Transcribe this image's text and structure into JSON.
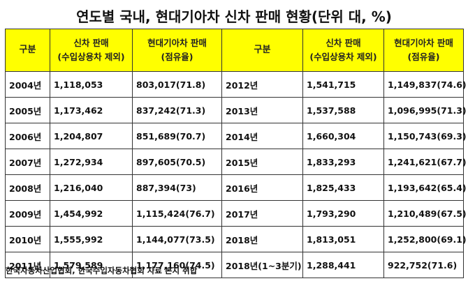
{
  "title": "연도별 국내, 현대기아차 신차 판매 현황(단위 대, %)",
  "table": {
    "headers": {
      "year_label": "구분",
      "sales_line1": "신차 판매",
      "sales_line2": "(수입상용차 제외)",
      "hk_line1": "현대기아차 판매",
      "hk_line2": "(점유율)"
    },
    "rows": [
      {
        "y1": "2004년",
        "s1": "1,118,053",
        "h1": "803,017(71.8)",
        "y2": "2012년",
        "s2": "1,541,715",
        "h2": "1,149,837(74.6)"
      },
      {
        "y1": "2005년",
        "s1": "1,173,462",
        "h1": "837,242(71.3)",
        "y2": "2013년",
        "s2": "1,537,588",
        "h2": "1,096,995(71.3)"
      },
      {
        "y1": "2006년",
        "s1": "1,204,807",
        "h1": "851,689(70.7)",
        "y2": "2014년",
        "s2": "1,660,304",
        "h2": "1,150,743(69.3)"
      },
      {
        "y1": "2007년",
        "s1": "1,272,934",
        "h1": "897,605(70.5)",
        "y2": "2015년",
        "s2": "1,833,293",
        "h2": "1,241,621(67.7)"
      },
      {
        "y1": "2008년",
        "s1": "1,216,040",
        "h1": "887,394(73)",
        "y2": "2016년",
        "s2": "1,825,433",
        "h2": "1,193,642(65.4)"
      },
      {
        "y1": "2009년",
        "s1": "1,454,992",
        "h1": "1,115,424(76.7)",
        "y2": "2017년",
        "s2": "1,793,290",
        "h2": "1,210,489(67.5)"
      },
      {
        "y1": "2010년",
        "s1": "1,555,992",
        "h1": "1,144,077(73.5)",
        "y2": "2018년",
        "s2": "1,813,051",
        "h2": "1,252,800(69.1)"
      },
      {
        "y1": "2011년",
        "s1": "1,579,589",
        "h1": "1,177,160(74.5)",
        "y2": "2018년(1~3분기)",
        "s2": "1,288,441",
        "h2": "922,752(71.6)"
      }
    ]
  },
  "source": "한국자동차산업협회, 한국수입자동차협회 자료 본지 취합",
  "colors": {
    "header_bg": "#ffff00",
    "border": "#333333",
    "text": "#111111"
  }
}
